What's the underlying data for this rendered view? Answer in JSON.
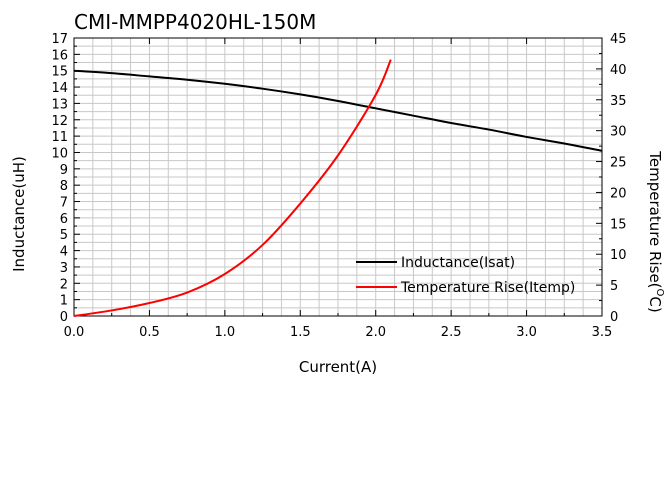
{
  "chart_data": {
    "type": "line",
    "title": "CMI-MMPP4020HL-150M",
    "xlabel": "Current(A)",
    "ylabel": "Inductance(uH)",
    "y2label_main": "Temperature Rise(",
    "y2label_sup": "O",
    "y2label_end": "C)",
    "xlim": [
      0,
      3.5
    ],
    "ylim": [
      0,
      17
    ],
    "y2lim": [
      0,
      45
    ],
    "grid": true,
    "legend_position": "bottom-right",
    "x_ticks": [
      "0.0",
      "0.5",
      "1.0",
      "1.5",
      "2.0",
      "2.5",
      "3.0",
      "3.5"
    ],
    "y_ticks": [
      "0",
      "1",
      "2",
      "3",
      "4",
      "5",
      "6",
      "7",
      "8",
      "9",
      "10",
      "11",
      "12",
      "13",
      "14",
      "15",
      "16",
      "17"
    ],
    "y2_ticks": [
      "0",
      "5",
      "10",
      "15",
      "20",
      "25",
      "30",
      "35",
      "40",
      "45"
    ],
    "series": [
      {
        "name": "Inductance(Isat)",
        "color": "#000000",
        "axis": "left",
        "x": [
          0,
          0.25,
          0.5,
          0.75,
          1.0,
          1.25,
          1.5,
          1.75,
          2.0,
          2.25,
          2.5,
          2.75,
          3.0,
          3.25,
          3.5
        ],
        "y": [
          15.0,
          14.85,
          14.65,
          14.45,
          14.2,
          13.9,
          13.55,
          13.15,
          12.7,
          12.25,
          11.8,
          11.4,
          10.95,
          10.55,
          10.1
        ]
      },
      {
        "name": "Temperature Rise(Itemp)",
        "color": "#ff0000",
        "axis": "right",
        "x": [
          0,
          0.25,
          0.5,
          0.75,
          1.0,
          1.25,
          1.5,
          1.75,
          2.0,
          2.1
        ],
        "y": [
          0,
          0.9,
          2.1,
          3.8,
          6.8,
          11.5,
          18.2,
          26.0,
          35.8,
          41.5
        ]
      }
    ]
  }
}
